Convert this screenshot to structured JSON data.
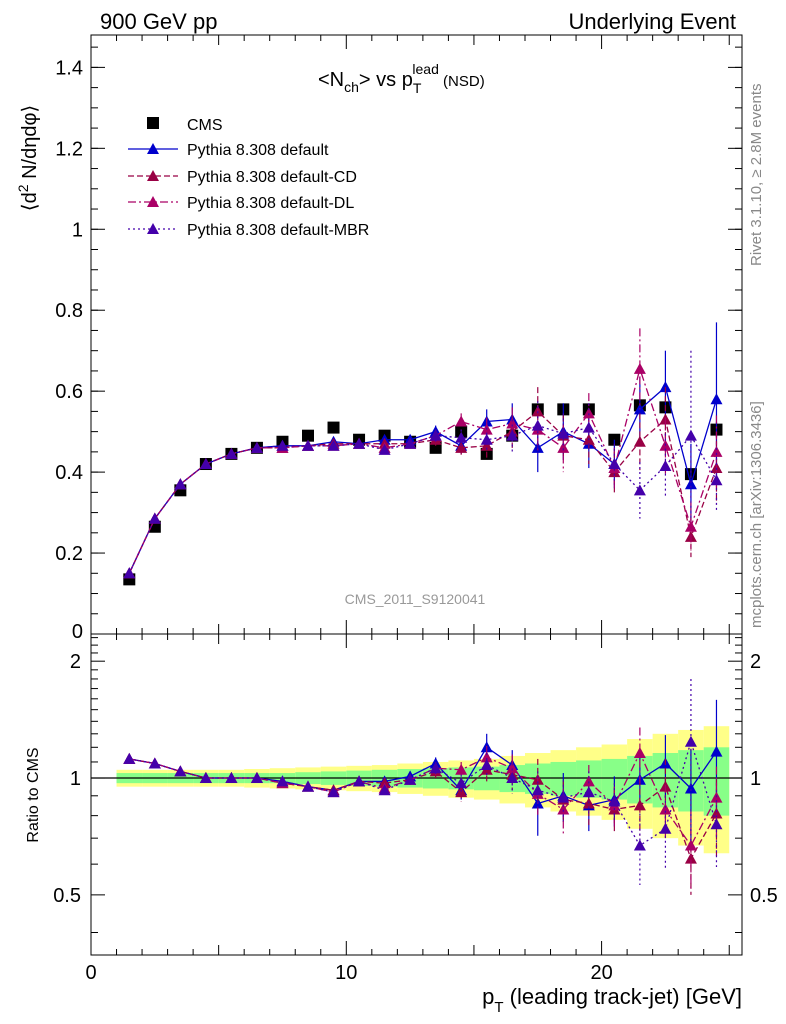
{
  "header": {
    "left": "900 GeV pp",
    "right": "Underlying Event"
  },
  "side_labels": {
    "rivet": "Rivet 3.1.10, ≥ 2.8M events",
    "mcplots": "mcplots.cern.ch [arXiv:1306.3436]"
  },
  "watermark": "CMS_2011_S9120041",
  "colors": {
    "cms": "#000000",
    "default": "#0000cc",
    "cd": "#990044",
    "dl": "#aa0066",
    "mbr": "#4400aa",
    "band_outer": "#ffff88",
    "band_inner": "#88ff88"
  },
  "chart_data": [
    {
      "type": "scatter",
      "panel": "main",
      "title_parts": {
        "a": "<N",
        "a_sub": "ch",
        "b": "> vs p",
        "b_sub": "T",
        "b_sup": "lead",
        "c": " (NSD)"
      },
      "ylabel_parts": {
        "a": "⟨d",
        "sup": "2",
        "b": " N/dηdφ⟩"
      },
      "xlim": [
        0,
        25.5
      ],
      "ylim": [
        0,
        1.48
      ],
      "y_ticks": [
        "0",
        "0.2",
        "0.4",
        "0.6",
        "0.8",
        "1",
        "1.2",
        "1.4"
      ],
      "y_tick_values": [
        0,
        0.2,
        0.4,
        0.6,
        0.8,
        1.0,
        1.2,
        1.4
      ],
      "legend_position": "top-left",
      "x": [
        1.5,
        2.5,
        3.5,
        4.5,
        5.5,
        6.5,
        7.5,
        8.5,
        9.5,
        10.5,
        11.5,
        12.5,
        13.5,
        14.5,
        15.5,
        16.5,
        17.5,
        18.5,
        19.5,
        20.5,
        21.5,
        22.5,
        23.5,
        24.5
      ],
      "series": [
        {
          "name": "CMS",
          "key": "cms",
          "style": "square",
          "dash": "none",
          "values": [
            0.135,
            0.265,
            0.355,
            0.42,
            0.445,
            0.46,
            0.475,
            0.49,
            0.51,
            0.48,
            0.49,
            0.475,
            0.46,
            0.5,
            0.445,
            0.49,
            0.555,
            0.555,
            0.555,
            0.48,
            0.565,
            0.56,
            0.395,
            0.505
          ],
          "errors": [
            0.005,
            0.006,
            0.006,
            0.006,
            0.006,
            0.006,
            0.007,
            0.007,
            0.008,
            0.008,
            0.008,
            0.008,
            0.009,
            0.01,
            0.01,
            0.01,
            0.012,
            0.012,
            0.012,
            0.012,
            0.014,
            0.014,
            0.016,
            0.018
          ]
        },
        {
          "name": "Pythia 8.308 default",
          "key": "default",
          "style": "triangle",
          "dash": "solid",
          "values": [
            0.15,
            0.285,
            0.37,
            0.42,
            0.445,
            0.46,
            0.465,
            0.465,
            0.475,
            0.47,
            0.48,
            0.48,
            0.5,
            0.465,
            0.525,
            0.53,
            0.46,
            0.5,
            0.47,
            0.42,
            0.555,
            0.61,
            0.37,
            0.58
          ],
          "errors": [
            0.002,
            0.002,
            0.003,
            0.003,
            0.004,
            0.004,
            0.005,
            0.006,
            0.007,
            0.008,
            0.01,
            0.012,
            0.015,
            0.02,
            0.03,
            0.04,
            0.06,
            0.07,
            0.06,
            0.06,
            0.08,
            0.09,
            0.1,
            0.19
          ]
        },
        {
          "name": "Pythia 8.308 default-CD",
          "key": "cd",
          "style": "triangle",
          "dash": "dashed",
          "values": [
            0.15,
            0.285,
            0.37,
            0.42,
            0.445,
            0.46,
            0.46,
            0.465,
            0.47,
            0.47,
            0.47,
            0.47,
            0.48,
            0.46,
            0.465,
            0.5,
            0.55,
            0.49,
            0.48,
            0.4,
            0.475,
            0.53,
            0.24,
            0.41
          ],
          "errors": [
            0.002,
            0.002,
            0.003,
            0.003,
            0.004,
            0.004,
            0.005,
            0.006,
            0.007,
            0.008,
            0.01,
            0.012,
            0.015,
            0.02,
            0.03,
            0.04,
            0.06,
            0.05,
            0.06,
            0.05,
            0.07,
            0.08,
            0.05,
            0.09
          ]
        },
        {
          "name": "Pythia 8.308 default-DL",
          "key": "dl",
          "style": "triangle",
          "dash": "dashdot",
          "values": [
            0.15,
            0.285,
            0.37,
            0.42,
            0.445,
            0.46,
            0.46,
            0.465,
            0.465,
            0.47,
            0.46,
            0.47,
            0.49,
            0.525,
            0.505,
            0.52,
            0.505,
            0.46,
            0.545,
            0.41,
            0.655,
            0.465,
            0.265,
            0.45
          ],
          "errors": [
            0.002,
            0.002,
            0.003,
            0.003,
            0.004,
            0.004,
            0.005,
            0.006,
            0.007,
            0.008,
            0.01,
            0.012,
            0.015,
            0.02,
            0.03,
            0.04,
            0.06,
            0.06,
            0.05,
            0.05,
            0.1,
            0.07,
            0.06,
            0.09
          ]
        },
        {
          "name": "Pythia 8.308 default-MBR",
          "key": "mbr",
          "style": "triangle",
          "dash": "dotted",
          "values": [
            0.15,
            0.285,
            0.37,
            0.42,
            0.445,
            0.46,
            0.465,
            0.465,
            0.465,
            0.47,
            0.455,
            0.47,
            0.49,
            0.485,
            0.48,
            0.49,
            0.515,
            0.495,
            0.51,
            0.42,
            0.355,
            0.415,
            0.49,
            0.38
          ],
          "errors": [
            0.002,
            0.002,
            0.003,
            0.003,
            0.004,
            0.004,
            0.005,
            0.006,
            0.007,
            0.008,
            0.01,
            0.012,
            0.015,
            0.02,
            0.03,
            0.04,
            0.06,
            0.05,
            0.06,
            0.05,
            0.07,
            0.08,
            0.21,
            0.08
          ]
        }
      ]
    },
    {
      "type": "scatter",
      "panel": "ratio",
      "ylabel": "Ratio to CMS",
      "xlabel_parts": {
        "a": "p",
        "sub": "T",
        "b": " (leading track-jet) [GeV]"
      },
      "xlim": [
        0,
        25.5
      ],
      "ylim": [
        0.35,
        2.35
      ],
      "x_ticks": [
        "0",
        "10",
        "20"
      ],
      "x_tick_values": [
        0,
        10,
        20
      ],
      "y_ticks": [
        "0.5",
        "1",
        "2"
      ],
      "y_tick_values": [
        0.5,
        1,
        2
      ],
      "x": [
        1.5,
        2.5,
        3.5,
        4.5,
        5.5,
        6.5,
        7.5,
        8.5,
        9.5,
        10.5,
        11.5,
        12.5,
        13.5,
        14.5,
        15.5,
        16.5,
        17.5,
        18.5,
        19.5,
        20.5,
        21.5,
        22.5,
        23.5,
        24.5
      ],
      "bands": {
        "inner": [
          0.03,
          0.03,
          0.03,
          0.03,
          0.03,
          0.03,
          0.03,
          0.035,
          0.04,
          0.045,
          0.05,
          0.055,
          0.06,
          0.065,
          0.07,
          0.08,
          0.09,
          0.1,
          0.11,
          0.12,
          0.14,
          0.16,
          0.18,
          0.2
        ],
        "outer": [
          0.05,
          0.05,
          0.05,
          0.05,
          0.05,
          0.055,
          0.06,
          0.065,
          0.07,
          0.075,
          0.08,
          0.09,
          0.1,
          0.11,
          0.12,
          0.14,
          0.16,
          0.18,
          0.2,
          0.22,
          0.26,
          0.3,
          0.33,
          0.36
        ]
      },
      "series": [
        {
          "name": "Pythia 8.308 default",
          "key": "default",
          "style": "triangle",
          "dash": "solid",
          "values": [
            1.12,
            1.09,
            1.04,
            1.0,
            1.0,
            1.0,
            0.98,
            0.95,
            0.93,
            0.98,
            0.98,
            1.01,
            1.09,
            0.93,
            1.2,
            1.08,
            0.86,
            0.9,
            0.85,
            0.88,
            0.99,
            1.09,
            0.94,
            1.17
          ],
          "errors": [
            0.01,
            0.01,
            0.01,
            0.01,
            0.01,
            0.01,
            0.01,
            0.012,
            0.015,
            0.02,
            0.025,
            0.03,
            0.04,
            0.05,
            0.1,
            0.1,
            0.15,
            0.13,
            0.12,
            0.13,
            0.16,
            0.2,
            0.25,
            0.42
          ]
        },
        {
          "name": "Pythia 8.308 default-CD",
          "key": "cd",
          "style": "triangle",
          "dash": "dashed",
          "values": [
            1.12,
            1.09,
            1.04,
            1.0,
            1.0,
            1.0,
            0.97,
            0.95,
            0.93,
            0.98,
            0.97,
            0.99,
            1.04,
            0.92,
            1.05,
            1.02,
            0.99,
            0.88,
            0.86,
            0.83,
            0.85,
            0.95,
            0.62,
            0.81
          ],
          "errors": [
            0.01,
            0.01,
            0.01,
            0.01,
            0.01,
            0.01,
            0.01,
            0.012,
            0.015,
            0.02,
            0.025,
            0.03,
            0.04,
            0.05,
            0.08,
            0.09,
            0.13,
            0.1,
            0.11,
            0.1,
            0.14,
            0.17,
            0.12,
            0.18
          ]
        },
        {
          "name": "Pythia 8.308 default-DL",
          "key": "dl",
          "style": "triangle",
          "dash": "dashdot",
          "values": [
            1.12,
            1.09,
            1.04,
            1.0,
            1.0,
            1.0,
            0.97,
            0.95,
            0.92,
            0.98,
            0.94,
            0.99,
            1.06,
            1.05,
            1.13,
            1.06,
            0.91,
            0.83,
            0.98,
            0.85,
            1.16,
            0.83,
            0.67,
            0.89
          ],
          "errors": [
            0.01,
            0.01,
            0.01,
            0.01,
            0.01,
            0.01,
            0.01,
            0.012,
            0.015,
            0.02,
            0.025,
            0.03,
            0.04,
            0.05,
            0.08,
            0.09,
            0.11,
            0.11,
            0.1,
            0.1,
            0.19,
            0.13,
            0.15,
            0.18
          ]
        },
        {
          "name": "Pythia 8.308 default-MBR",
          "key": "mbr",
          "style": "triangle",
          "dash": "dotted",
          "values": [
            1.12,
            1.09,
            1.04,
            1.0,
            1.0,
            1.0,
            0.98,
            0.95,
            0.92,
            0.98,
            0.93,
            0.99,
            1.06,
            0.97,
            1.08,
            1.0,
            0.93,
            0.89,
            0.92,
            0.87,
            0.67,
            0.74,
            1.24,
            0.76
          ],
          "errors": [
            0.01,
            0.01,
            0.01,
            0.01,
            0.01,
            0.01,
            0.01,
            0.012,
            0.015,
            0.02,
            0.025,
            0.03,
            0.04,
            0.05,
            0.08,
            0.09,
            0.11,
            0.1,
            0.12,
            0.1,
            0.14,
            0.16,
            0.56,
            0.17
          ]
        }
      ]
    }
  ]
}
